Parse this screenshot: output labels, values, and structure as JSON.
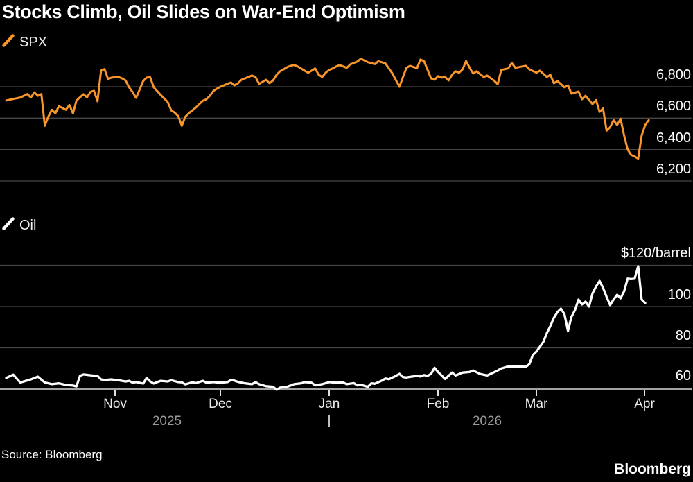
{
  "title": "Stocks Climb, Oil Slides on War-End Optimism",
  "source": "Source: Bloomberg",
  "brand": "Bloomberg",
  "colors": {
    "background": "#000000",
    "spx_line": "#f8952b",
    "oil_line": "#ffffff",
    "gridline": "#474747",
    "axis_line": "#a3a3a3",
    "tick_mark": "#e0e0e0",
    "year_label": "#9a9a9a"
  },
  "top_panel": {
    "legend": "SPX",
    "y_tick_labels": [
      "6,800",
      "6,600",
      "6,400",
      "6,200"
    ]
  },
  "bottom_panel": {
    "legend": "Oil",
    "y_axis_unit_label": "$120/barrel",
    "y_tick_labels": [
      "100",
      "80",
      "60"
    ]
  },
  "x_axis": {
    "months": [
      "Nov",
      "Dec",
      "Jan",
      "Feb",
      "Mar",
      "Apr"
    ],
    "years": [
      "2025",
      "2026"
    ]
  },
  "chart_data": [
    {
      "type": "line",
      "name": "SPX",
      "color": "#f8952b",
      "unit": "index level",
      "ylim": [
        6150,
        7010
      ],
      "y_ticks": [
        6800,
        6600,
        6400,
        6200
      ],
      "xlim": [
        "2025-10-01",
        "2026-04-02"
      ],
      "points": [
        [
          "2025-10-01",
          6712
        ],
        [
          "2025-10-03",
          6722
        ],
        [
          "2025-10-05",
          6731
        ],
        [
          "2025-10-07",
          6753
        ],
        [
          "2025-10-08",
          6731
        ],
        [
          "2025-10-09",
          6764
        ],
        [
          "2025-10-10",
          6742
        ],
        [
          "2025-10-11",
          6753
        ],
        [
          "2025-10-12",
          6551
        ],
        [
          "2025-10-13",
          6610
        ],
        [
          "2025-10-14",
          6653
        ],
        [
          "2025-10-15",
          6631
        ],
        [
          "2025-10-16",
          6676
        ],
        [
          "2025-10-18",
          6653
        ],
        [
          "2025-10-19",
          6684
        ],
        [
          "2025-10-20",
          6630
        ],
        [
          "2025-10-21",
          6711
        ],
        [
          "2025-10-22",
          6733
        ],
        [
          "2025-10-23",
          6752
        ],
        [
          "2025-10-24",
          6733
        ],
        [
          "2025-10-25",
          6767
        ],
        [
          "2025-10-26",
          6774
        ],
        [
          "2025-10-27",
          6707
        ],
        [
          "2025-10-28",
          6903
        ],
        [
          "2025-10-29",
          6912
        ],
        [
          "2025-10-30",
          6849
        ],
        [
          "2025-10-31",
          6858
        ],
        [
          "2025-11-02",
          6862
        ],
        [
          "2025-11-03",
          6853
        ],
        [
          "2025-11-04",
          6840
        ],
        [
          "2025-11-05",
          6796
        ],
        [
          "2025-11-06",
          6765
        ],
        [
          "2025-11-07",
          6729
        ],
        [
          "2025-11-08",
          6782
        ],
        [
          "2025-11-09",
          6836
        ],
        [
          "2025-11-10",
          6858
        ],
        [
          "2025-11-11",
          6860
        ],
        [
          "2025-11-12",
          6796
        ],
        [
          "2025-11-13",
          6772
        ],
        [
          "2025-11-14",
          6747
        ],
        [
          "2025-11-15",
          6725
        ],
        [
          "2025-11-16",
          6702
        ],
        [
          "2025-11-17",
          6649
        ],
        [
          "2025-11-18",
          6635
        ],
        [
          "2025-11-19",
          6613
        ],
        [
          "2025-11-20",
          6551
        ],
        [
          "2025-11-21",
          6609
        ],
        [
          "2025-11-22",
          6631
        ],
        [
          "2025-11-24",
          6667
        ],
        [
          "2025-11-25",
          6689
        ],
        [
          "2025-11-26",
          6711
        ],
        [
          "2025-11-27",
          6720
        ],
        [
          "2025-11-28",
          6742
        ],
        [
          "2025-11-29",
          6773
        ],
        [
          "2025-11-30",
          6787
        ],
        [
          "2025-12-01",
          6800
        ],
        [
          "2025-12-02",
          6809
        ],
        [
          "2025-12-03",
          6818
        ],
        [
          "2025-12-04",
          6827
        ],
        [
          "2025-12-05",
          6809
        ],
        [
          "2025-12-06",
          6822
        ],
        [
          "2025-12-07",
          6844
        ],
        [
          "2025-12-08",
          6853
        ],
        [
          "2025-12-09",
          6862
        ],
        [
          "2025-12-10",
          6871
        ],
        [
          "2025-12-11",
          6862
        ],
        [
          "2025-12-12",
          6818
        ],
        [
          "2025-12-13",
          6831
        ],
        [
          "2025-12-14",
          6844
        ],
        [
          "2025-12-15",
          6822
        ],
        [
          "2025-12-16",
          6840
        ],
        [
          "2025-12-17",
          6876
        ],
        [
          "2025-12-18",
          6898
        ],
        [
          "2025-12-19",
          6911
        ],
        [
          "2025-12-20",
          6924
        ],
        [
          "2025-12-21",
          6933
        ],
        [
          "2025-12-22",
          6938
        ],
        [
          "2025-12-23",
          6929
        ],
        [
          "2025-12-25",
          6902
        ],
        [
          "2025-12-26",
          6889
        ],
        [
          "2025-12-27",
          6902
        ],
        [
          "2025-12-28",
          6916
        ],
        [
          "2025-12-29",
          6876
        ],
        [
          "2025-12-30",
          6862
        ],
        [
          "2025-12-31",
          6889
        ],
        [
          "2026-01-01",
          6907
        ],
        [
          "2026-01-02",
          6916
        ],
        [
          "2026-01-03",
          6929
        ],
        [
          "2026-01-04",
          6938
        ],
        [
          "2026-01-05",
          6929
        ],
        [
          "2026-01-06",
          6920
        ],
        [
          "2026-01-07",
          6942
        ],
        [
          "2026-01-09",
          6960
        ],
        [
          "2026-01-10",
          6978
        ],
        [
          "2026-01-12",
          6956
        ],
        [
          "2026-01-14",
          6944
        ],
        [
          "2026-01-15",
          6962
        ],
        [
          "2026-01-17",
          6949
        ],
        [
          "2026-01-19",
          6884
        ],
        [
          "2026-01-21",
          6800
        ],
        [
          "2026-01-23",
          6920
        ],
        [
          "2026-01-24",
          6933
        ],
        [
          "2026-01-26",
          6918
        ],
        [
          "2026-01-27",
          6973
        ],
        [
          "2026-01-28",
          6962
        ],
        [
          "2026-01-30",
          6853
        ],
        [
          "2026-01-31",
          6844
        ],
        [
          "2026-02-01",
          6867
        ],
        [
          "2026-02-02",
          6858
        ],
        [
          "2026-02-03",
          6862
        ],
        [
          "2026-02-04",
          6840
        ],
        [
          "2026-02-05",
          6876
        ],
        [
          "2026-02-06",
          6898
        ],
        [
          "2026-02-07",
          6889
        ],
        [
          "2026-02-08",
          6911
        ],
        [
          "2026-02-09",
          6964
        ],
        [
          "2026-02-10",
          6920
        ],
        [
          "2026-02-11",
          6884
        ],
        [
          "2026-02-12",
          6898
        ],
        [
          "2026-02-14",
          6862
        ],
        [
          "2026-02-15",
          6871
        ],
        [
          "2026-02-17",
          6838
        ],
        [
          "2026-02-18",
          6816
        ],
        [
          "2026-02-19",
          6907
        ],
        [
          "2026-02-21",
          6916
        ],
        [
          "2026-02-22",
          6951
        ],
        [
          "2026-02-23",
          6920
        ],
        [
          "2026-02-25",
          6929
        ],
        [
          "2026-02-26",
          6933
        ],
        [
          "2026-02-27",
          6911
        ],
        [
          "2026-03-01",
          6889
        ],
        [
          "2026-03-02",
          6902
        ],
        [
          "2026-03-04",
          6862
        ],
        [
          "2026-03-05",
          6876
        ],
        [
          "2026-03-06",
          6822
        ],
        [
          "2026-03-07",
          6836
        ],
        [
          "2026-03-09",
          6796
        ],
        [
          "2026-03-10",
          6809
        ],
        [
          "2026-03-11",
          6756
        ],
        [
          "2026-03-13",
          6769
        ],
        [
          "2026-03-14",
          6720
        ],
        [
          "2026-03-15",
          6742
        ],
        [
          "2026-03-17",
          6689
        ],
        [
          "2026-03-18",
          6715
        ],
        [
          "2026-03-19",
          6640
        ],
        [
          "2026-03-20",
          6662
        ],
        [
          "2026-03-21",
          6520
        ],
        [
          "2026-03-22",
          6542
        ],
        [
          "2026-03-23",
          6587
        ],
        [
          "2026-03-24",
          6556
        ],
        [
          "2026-03-25",
          6596
        ],
        [
          "2026-03-26",
          6489
        ],
        [
          "2026-03-27",
          6400
        ],
        [
          "2026-03-28",
          6366
        ],
        [
          "2026-03-29",
          6356
        ],
        [
          "2026-03-30",
          6342
        ],
        [
          "2026-03-31",
          6489
        ],
        [
          "2026-04-01",
          6556
        ],
        [
          "2026-04-02",
          6587
        ]
      ]
    },
    {
      "type": "line",
      "name": "Oil",
      "color": "#ffffff",
      "unit": "$/barrel",
      "ylim": [
        57,
        122
      ],
      "y_ticks": [
        120,
        100,
        80,
        60
      ],
      "xlim": [
        "2025-10-01",
        "2026-04-01"
      ],
      "points": [
        [
          "2025-10-01",
          65.4
        ],
        [
          "2025-10-03",
          67.0
        ],
        [
          "2025-10-05",
          63.2
        ],
        [
          "2025-10-08",
          64.7
        ],
        [
          "2025-10-10",
          66.0
        ],
        [
          "2025-10-12",
          63.2
        ],
        [
          "2025-10-14",
          62.4
        ],
        [
          "2025-10-16",
          62.8
        ],
        [
          "2025-10-18",
          62.0
        ],
        [
          "2025-10-20",
          61.7
        ],
        [
          "2025-10-21",
          61.3
        ],
        [
          "2025-10-22",
          66.4
        ],
        [
          "2025-10-23",
          67.1
        ],
        [
          "2025-10-25",
          66.7
        ],
        [
          "2025-10-27",
          66.4
        ],
        [
          "2025-10-28",
          64.7
        ],
        [
          "2025-10-29",
          64.4
        ],
        [
          "2025-10-31",
          64.7
        ],
        [
          "2025-11-01",
          64.4
        ],
        [
          "2025-11-02",
          64.3
        ],
        [
          "2025-11-04",
          63.7
        ],
        [
          "2025-11-05",
          64.0
        ],
        [
          "2025-11-06",
          63.1
        ],
        [
          "2025-11-07",
          63.4
        ],
        [
          "2025-11-09",
          62.7
        ],
        [
          "2025-11-10",
          65.4
        ],
        [
          "2025-11-11",
          63.7
        ],
        [
          "2025-11-12",
          62.7
        ],
        [
          "2025-11-13",
          63.4
        ],
        [
          "2025-11-14",
          64.0
        ],
        [
          "2025-11-16",
          63.7
        ],
        [
          "2025-11-17",
          64.3
        ],
        [
          "2025-11-19",
          63.4
        ],
        [
          "2025-11-20",
          63.3
        ],
        [
          "2025-11-21",
          62.3
        ],
        [
          "2025-11-23",
          63.3
        ],
        [
          "2025-11-24",
          62.9
        ],
        [
          "2025-11-26",
          64.0
        ],
        [
          "2025-11-27",
          63.1
        ],
        [
          "2025-11-29",
          63.4
        ],
        [
          "2025-12-01",
          63.1
        ],
        [
          "2025-12-03",
          63.4
        ],
        [
          "2025-12-04",
          64.4
        ],
        [
          "2025-12-05",
          64.1
        ],
        [
          "2025-12-06",
          63.5
        ],
        [
          "2025-12-08",
          62.8
        ],
        [
          "2025-12-10",
          62.4
        ],
        [
          "2025-12-11",
          63.4
        ],
        [
          "2025-12-12",
          62.4
        ],
        [
          "2025-12-14",
          61.4
        ],
        [
          "2025-12-16",
          61.1
        ],
        [
          "2025-12-17",
          59.7
        ],
        [
          "2025-12-18",
          60.7
        ],
        [
          "2025-12-20",
          61.1
        ],
        [
          "2025-12-22",
          62.4
        ],
        [
          "2025-12-24",
          62.8
        ],
        [
          "2025-12-25",
          63.4
        ],
        [
          "2025-12-27",
          63.1
        ],
        [
          "2025-12-28",
          61.8
        ],
        [
          "2025-12-30",
          62.4
        ],
        [
          "2026-01-01",
          63.4
        ],
        [
          "2026-01-03",
          63.1
        ],
        [
          "2026-01-05",
          63.2
        ],
        [
          "2026-01-06",
          62.4
        ],
        [
          "2026-01-08",
          62.9
        ],
        [
          "2026-01-09",
          61.8
        ],
        [
          "2026-01-10",
          62.1
        ],
        [
          "2026-01-12",
          61.1
        ],
        [
          "2026-01-13",
          62.8
        ],
        [
          "2026-01-14",
          62.6
        ],
        [
          "2026-01-16",
          64.1
        ],
        [
          "2026-01-17",
          65.1
        ],
        [
          "2026-01-18",
          64.8
        ],
        [
          "2026-01-20",
          66.4
        ],
        [
          "2026-01-21",
          67.4
        ],
        [
          "2026-01-22",
          65.8
        ],
        [
          "2026-01-23",
          65.6
        ],
        [
          "2026-01-24",
          65.9
        ],
        [
          "2026-01-26",
          66.4
        ],
        [
          "2026-01-27",
          66.1
        ],
        [
          "2026-01-28",
          66.8
        ],
        [
          "2026-01-29",
          66.4
        ],
        [
          "2026-01-30",
          67.4
        ],
        [
          "2026-01-31",
          70.3
        ],
        [
          "2026-02-01",
          68.3
        ],
        [
          "2026-02-03",
          64.9
        ],
        [
          "2026-02-05",
          68.0
        ],
        [
          "2026-02-06",
          66.6
        ],
        [
          "2026-02-08",
          68.0
        ],
        [
          "2026-02-10",
          68.3
        ],
        [
          "2026-02-11",
          69.0
        ],
        [
          "2026-02-13",
          67.3
        ],
        [
          "2026-02-15",
          66.6
        ],
        [
          "2026-02-18",
          69.0
        ],
        [
          "2026-02-19",
          70.0
        ],
        [
          "2026-02-21",
          71.0
        ],
        [
          "2026-02-24",
          71.0
        ],
        [
          "2026-02-26",
          70.8
        ],
        [
          "2026-02-27",
          72.1
        ],
        [
          "2026-02-28",
          76.5
        ],
        [
          "2026-03-01",
          78.2
        ],
        [
          "2026-03-02",
          80.5
        ],
        [
          "2026-03-03",
          82.9
        ],
        [
          "2026-03-04",
          87.2
        ],
        [
          "2026-03-05",
          90.6
        ],
        [
          "2026-03-06",
          94.6
        ],
        [
          "2026-03-07",
          97.3
        ],
        [
          "2026-03-08",
          99.0
        ],
        [
          "2026-03-09",
          96.3
        ],
        [
          "2026-03-10",
          88.2
        ],
        [
          "2026-03-11",
          95.0
        ],
        [
          "2026-03-12",
          98.3
        ],
        [
          "2026-03-13",
          103.4
        ],
        [
          "2026-03-14",
          101.0
        ],
        [
          "2026-03-15",
          102.4
        ],
        [
          "2026-03-16",
          100.0
        ],
        [
          "2026-03-17",
          106.4
        ],
        [
          "2026-03-18",
          109.7
        ],
        [
          "2026-03-19",
          112.4
        ],
        [
          "2026-03-20",
          109.1
        ],
        [
          "2026-03-21",
          104.7
        ],
        [
          "2026-03-22",
          100.7
        ],
        [
          "2026-03-23",
          103.4
        ],
        [
          "2026-03-24",
          105.7
        ],
        [
          "2026-03-25",
          104.0
        ],
        [
          "2026-03-26",
          107.4
        ],
        [
          "2026-03-27",
          113.5
        ],
        [
          "2026-03-28",
          113.3
        ],
        [
          "2026-03-29",
          113.5
        ],
        [
          "2026-03-30",
          119.5
        ],
        [
          "2026-03-31",
          103.4
        ],
        [
          "2026-04-01",
          101.7
        ]
      ]
    }
  ]
}
